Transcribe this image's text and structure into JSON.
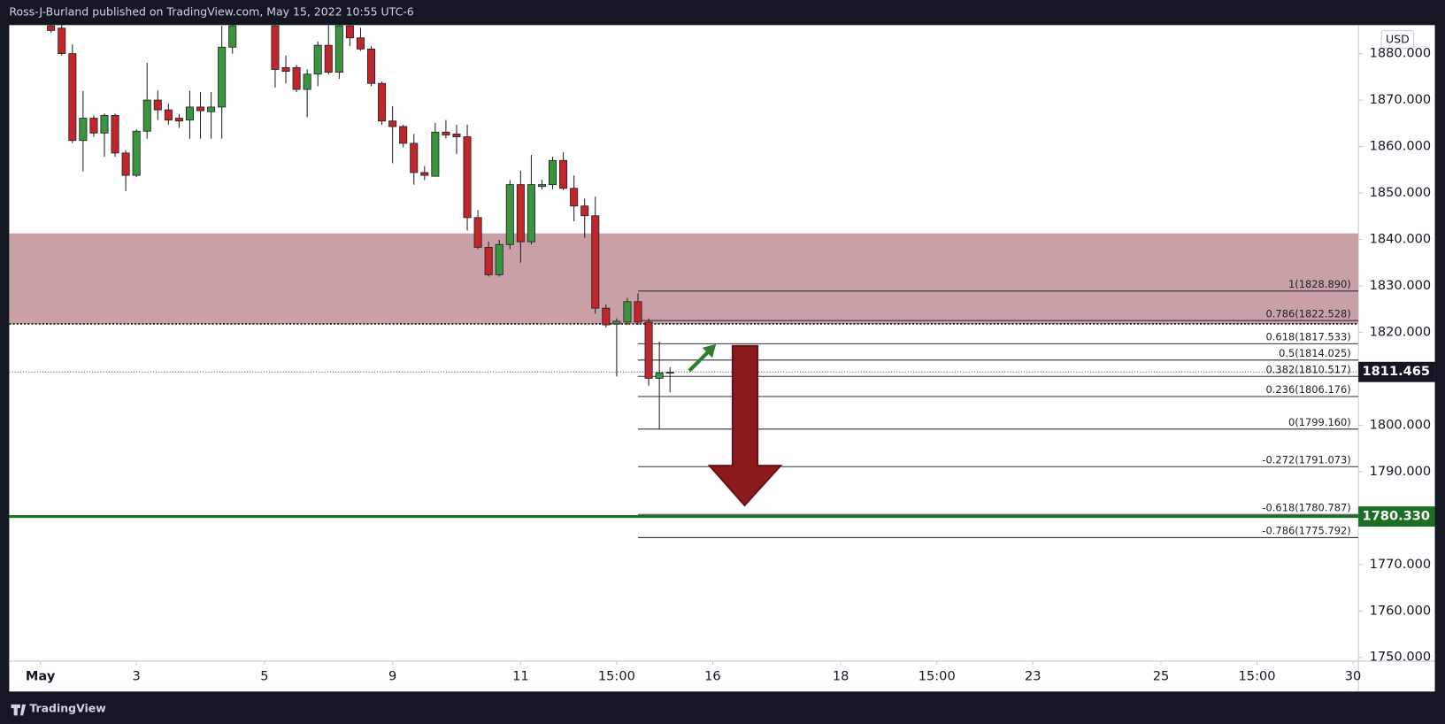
{
  "chart_data": {
    "type": "candlestick",
    "header": "Ross-J-Burland published on TradingView.com, May 15, 2022 10:55 UTC-6",
    "brand": "TradingView",
    "currency": "USD",
    "up_color": "#3a9440",
    "down_color": "#c0262b",
    "xlim": [
      -11.92,
      114.5
    ],
    "ylim": [
      1749.2,
      1886.15
    ],
    "xticks": [
      {
        "value": -9,
        "label": "May"
      },
      {
        "value": 0,
        "label": "3"
      },
      {
        "value": 12,
        "label": "5"
      },
      {
        "value": 24,
        "label": "9"
      },
      {
        "value": 36,
        "label": "11"
      },
      {
        "value": 45,
        "label": "15:00"
      },
      {
        "value": 54,
        "label": "16"
      },
      {
        "value": 66,
        "label": "18"
      },
      {
        "value": 75,
        "label": "15:00"
      },
      {
        "value": 84,
        "label": "23"
      },
      {
        "value": 96,
        "label": "25"
      },
      {
        "value": 105,
        "label": "15:00"
      },
      {
        "value": 114,
        "label": "30"
      }
    ],
    "yticks": [
      {
        "value": 1880,
        "label": "1880.000"
      },
      {
        "value": 1870,
        "label": "1870.000"
      },
      {
        "value": 1860,
        "label": "1860.000"
      },
      {
        "value": 1850,
        "label": "1850.000"
      },
      {
        "value": 1840,
        "label": "1840.000"
      },
      {
        "value": 1830,
        "label": "1830.000"
      },
      {
        "value": 1820,
        "label": "1820.000"
      },
      {
        "value": 1800,
        "label": "1800.000"
      },
      {
        "value": 1790,
        "label": "1790.000"
      },
      {
        "value": 1770,
        "label": "1770.000"
      },
      {
        "value": 1760,
        "label": "1760.000"
      },
      {
        "value": 1750,
        "label": "1750.000"
      }
    ],
    "candles": [
      {
        "x": -8,
        "open": 1886,
        "high": 1890,
        "low": 1884.5,
        "close": 1885
      },
      {
        "x": -7,
        "open": 1885.5,
        "high": 1890,
        "low": 1879.6,
        "close": 1880
      },
      {
        "x": -6,
        "open": 1880,
        "high": 1882,
        "low": 1860.7,
        "close": 1861.3
      },
      {
        "x": -5,
        "open": 1861.3,
        "high": 1872,
        "low": 1854.6,
        "close": 1866.1
      },
      {
        "x": -4,
        "open": 1866.1,
        "high": 1866.7,
        "low": 1862.1,
        "close": 1862.9
      },
      {
        "x": -3,
        "open": 1862.9,
        "high": 1867.1,
        "low": 1857.8,
        "close": 1866.7
      },
      {
        "x": -2,
        "open": 1866.7,
        "high": 1867.1,
        "low": 1857.8,
        "close": 1858.6
      },
      {
        "x": -1,
        "open": 1858.6,
        "high": 1859.2,
        "low": 1850.4,
        "close": 1853.8
      },
      {
        "x": 0,
        "open": 1853.8,
        "high": 1863.7,
        "low": 1853.4,
        "close": 1863.3
      },
      {
        "x": 1,
        "open": 1863.3,
        "high": 1878,
        "low": 1861.7,
        "close": 1870
      },
      {
        "x": 2,
        "open": 1870,
        "high": 1872.1,
        "low": 1865.7,
        "close": 1867.9
      },
      {
        "x": 3,
        "open": 1867.9,
        "high": 1869.3,
        "low": 1864.7,
        "close": 1865.7
      },
      {
        "x": 4,
        "open": 1866.1,
        "high": 1867,
        "low": 1864,
        "close": 1865.5
      },
      {
        "x": 5,
        "open": 1865.7,
        "high": 1872,
        "low": 1861.7,
        "close": 1868.5
      },
      {
        "x": 6,
        "open": 1868.5,
        "high": 1871.7,
        "low": 1861.7,
        "close": 1867.7
      },
      {
        "x": 7,
        "open": 1867.5,
        "high": 1871.7,
        "low": 1861.7,
        "close": 1868.5
      },
      {
        "x": 8,
        "open": 1868.5,
        "high": 1886,
        "low": 1861.7,
        "close": 1881.4
      },
      {
        "x": 9,
        "open": 1881.4,
        "high": 1890,
        "low": 1880,
        "close": 1886
      },
      {
        "x": 13,
        "open": 1886,
        "high": 1890,
        "low": 1872.7,
        "close": 1876.6
      },
      {
        "x": 14,
        "open": 1877,
        "high": 1879.6,
        "low": 1873.6,
        "close": 1876.2
      },
      {
        "x": 15,
        "open": 1877,
        "high": 1877.6,
        "low": 1871.7,
        "close": 1872.3
      },
      {
        "x": 16,
        "open": 1872.3,
        "high": 1876.6,
        "low": 1866.3,
        "close": 1875.6
      },
      {
        "x": 17,
        "open": 1875.6,
        "high": 1882.6,
        "low": 1873,
        "close": 1881.8
      },
      {
        "x": 18,
        "open": 1881.8,
        "high": 1890,
        "low": 1875.6,
        "close": 1876
      },
      {
        "x": 19,
        "open": 1876,
        "high": 1890,
        "low": 1874.6,
        "close": 1886
      },
      {
        "x": 20,
        "open": 1886,
        "high": 1890,
        "low": 1881.6,
        "close": 1883.4
      },
      {
        "x": 21,
        "open": 1883.4,
        "high": 1885.6,
        "low": 1880.6,
        "close": 1881
      },
      {
        "x": 22,
        "open": 1881,
        "high": 1881.6,
        "low": 1873,
        "close": 1873.6
      },
      {
        "x": 23,
        "open": 1873.6,
        "high": 1874,
        "low": 1864.7,
        "close": 1865.5
      },
      {
        "x": 24,
        "open": 1865.5,
        "high": 1868.7,
        "low": 1856.4,
        "close": 1864.3
      },
      {
        "x": 25,
        "open": 1864.3,
        "high": 1864.7,
        "low": 1859.8,
        "close": 1860.7
      },
      {
        "x": 26,
        "open": 1860.7,
        "high": 1862.7,
        "low": 1851.8,
        "close": 1854.4
      },
      {
        "x": 27,
        "open": 1854.4,
        "high": 1855.8,
        "low": 1852.8,
        "close": 1853.8
      },
      {
        "x": 28,
        "open": 1853.6,
        "high": 1865.1,
        "low": 1853.8,
        "close": 1863.1
      },
      {
        "x": 29,
        "open": 1863.1,
        "high": 1865.7,
        "low": 1861.7,
        "close": 1862.5
      },
      {
        "x": 30,
        "open": 1862.7,
        "high": 1864.7,
        "low": 1858.4,
        "close": 1862.1
      },
      {
        "x": 31,
        "open": 1862.1,
        "high": 1864.7,
        "low": 1841.9,
        "close": 1844.7
      },
      {
        "x": 32,
        "open": 1844.7,
        "high": 1846.3,
        "low": 1837.9,
        "close": 1838.3
      },
      {
        "x": 33,
        "open": 1838.3,
        "high": 1839.5,
        "low": 1832,
        "close": 1832.4
      },
      {
        "x": 34,
        "open": 1832.4,
        "high": 1839.9,
        "low": 1832,
        "close": 1838.9
      },
      {
        "x": 35,
        "open": 1838.9,
        "high": 1852.8,
        "low": 1837.9,
        "close": 1851.8
      },
      {
        "x": 36,
        "open": 1851.8,
        "high": 1854.8,
        "low": 1835,
        "close": 1839.5
      },
      {
        "x": 37,
        "open": 1839.5,
        "high": 1858.2,
        "low": 1838.9,
        "close": 1851.8
      },
      {
        "x": 38,
        "open": 1851.4,
        "high": 1852.8,
        "low": 1850.8,
        "close": 1851.8
      },
      {
        "x": 39,
        "open": 1851.8,
        "high": 1857.8,
        "low": 1850.8,
        "close": 1857
      },
      {
        "x": 40,
        "open": 1857,
        "high": 1858.8,
        "low": 1850.6,
        "close": 1851
      },
      {
        "x": 41,
        "open": 1851,
        "high": 1853.8,
        "low": 1843.9,
        "close": 1847.2
      },
      {
        "x": 42,
        "open": 1847.2,
        "high": 1848.8,
        "low": 1840.3,
        "close": 1845.1
      },
      {
        "x": 43,
        "open": 1845.1,
        "high": 1849.2,
        "low": 1824,
        "close": 1825.2
      },
      {
        "x": 44,
        "open": 1825.2,
        "high": 1826,
        "low": 1821,
        "close": 1821.6
      },
      {
        "x": 45,
        "open": 1821.8,
        "high": 1823,
        "low": 1810.5,
        "close": 1822.4
      },
      {
        "x": 46,
        "open": 1822.2,
        "high": 1827.4,
        "low": 1821.6,
        "close": 1826.6
      },
      {
        "x": 47,
        "open": 1826.6,
        "high": 1828.4,
        "low": 1821.6,
        "close": 1822.2
      },
      {
        "x": 48,
        "open": 1822.2,
        "high": 1823,
        "low": 1808.5,
        "close": 1810.1
      },
      {
        "x": 49,
        "open": 1810.1,
        "high": 1818,
        "low": 1799.2,
        "close": 1811.3
      },
      {
        "x": 50,
        "open": 1811.2,
        "high": 1812.5,
        "low": 1807.1,
        "close": 1811.4
      }
    ],
    "zone": {
      "low": 1821.8,
      "high": 1841.3,
      "color": "#c9a0a6"
    },
    "fib_start_x": 47,
    "fib_levels": [
      {
        "price": 1828.89,
        "label": "1(1828.890)"
      },
      {
        "price": 1822.528,
        "label": "0.786(1822.528)"
      },
      {
        "price": 1817.533,
        "label": "0.618(1817.533)"
      },
      {
        "price": 1814.025,
        "label": "0.5(1814.025)"
      },
      {
        "price": 1810.517,
        "label": "0.382(1810.517)"
      },
      {
        "price": 1806.176,
        "label": "0.236(1806.176)"
      },
      {
        "price": 1799.16,
        "label": "0(1799.160)"
      },
      {
        "price": 1791.073,
        "label": "-0.272(1791.073)"
      },
      {
        "price": 1780.787,
        "label": "-0.618(1780.787)"
      },
      {
        "price": 1775.792,
        "label": "-0.786(1775.792)"
      }
    ],
    "last_price": {
      "value": 1811.465,
      "label": "1811.465"
    },
    "support": {
      "value": 1780.33,
      "label": "1780.330",
      "color": "#1b6e23"
    }
  }
}
